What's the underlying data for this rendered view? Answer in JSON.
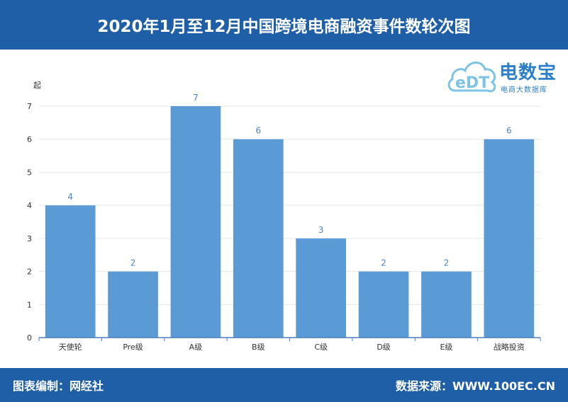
{
  "header": {
    "title": "2020年1月至12月中国跨境电商融资事件数轮次图"
  },
  "footer": {
    "left": "图表编制：网经社",
    "right": "数据来源：WWW.100EC.CN"
  },
  "logo": {
    "brand": "电数宝",
    "subtitle": "电商大数据库",
    "mark": "eDT"
  },
  "colors": {
    "header_bg": "#1f5fa8",
    "bar": "#5b9bd5",
    "value_label": "#4a86c5",
    "axis": "#4a7fbf"
  },
  "chart_data": {
    "type": "bar",
    "ylabel": "起",
    "ylim": [
      0,
      7
    ],
    "yticks": [
      0,
      1,
      2,
      3,
      4,
      5,
      6,
      7
    ],
    "categories": [
      "天使轮",
      "Pre级",
      "A级",
      "B级",
      "C级",
      "D级",
      "E级",
      "战略投资"
    ],
    "values": [
      4,
      2,
      7,
      6,
      3,
      2,
      2,
      6
    ],
    "grid": true
  }
}
